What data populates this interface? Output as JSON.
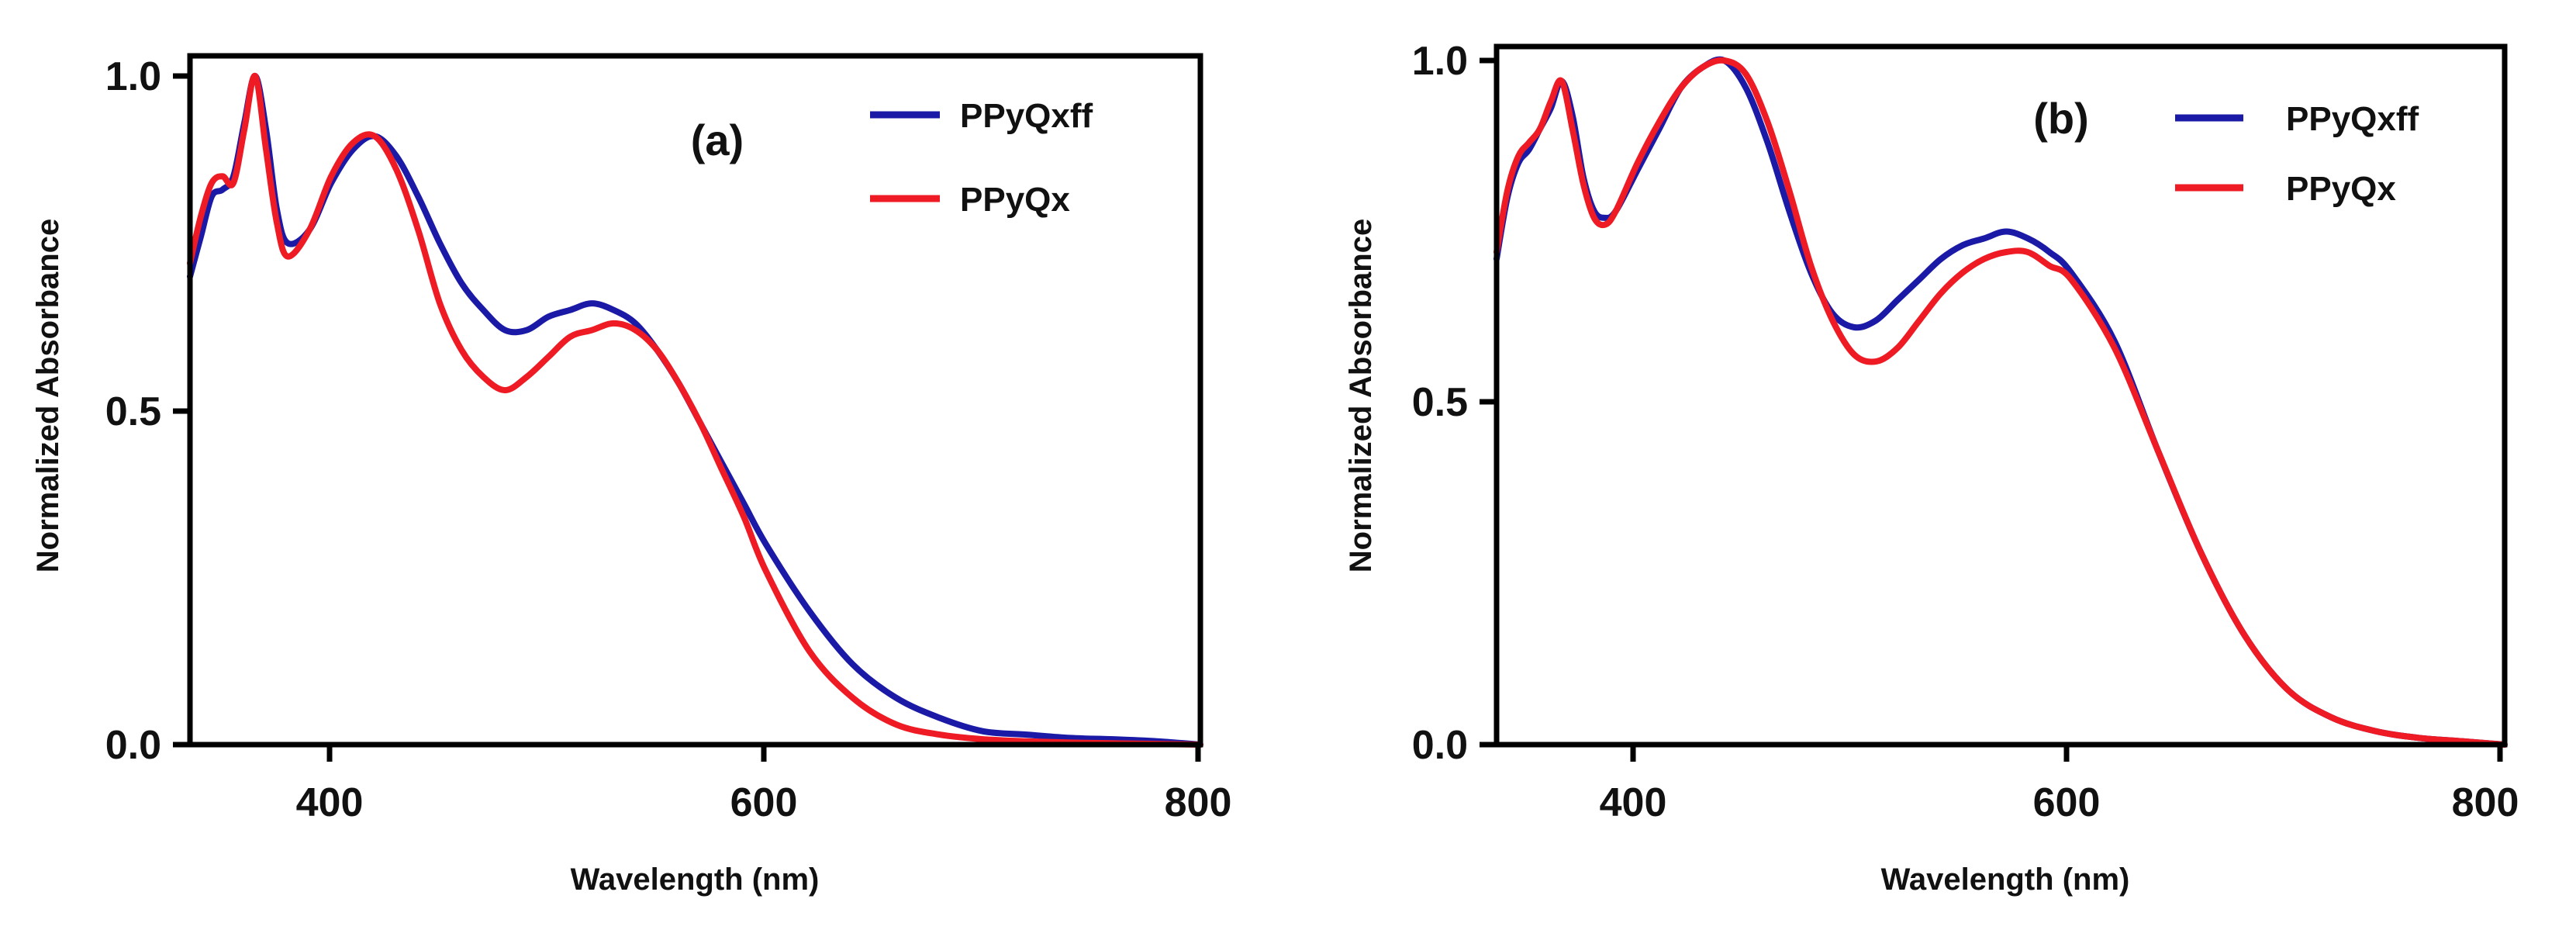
{
  "chart_data": [
    {
      "type": "line",
      "panel_label": "(a)",
      "xlabel": "Wavelength (nm)",
      "ylabel": "Normalized Absorbance",
      "xlim": [
        335,
        800
      ],
      "ylim": [
        0,
        1.0
      ],
      "xticks": [
        400,
        600,
        800
      ],
      "xtick_labels": [
        "400",
        "600",
        "800"
      ],
      "yticks": [
        0.0,
        0.5,
        1.0
      ],
      "ytick_labels": [
        "0.0",
        "0.5",
        "1.0"
      ],
      "legend_position": "top-right",
      "series": [
        {
          "name": "PPyQxff",
          "color": "#1a1aa6",
          "x": [
            335,
            340,
            345,
            350,
            355,
            360,
            365,
            370,
            375,
            380,
            390,
            400,
            410,
            420,
            430,
            440,
            450,
            460,
            470,
            480,
            490,
            500,
            510,
            520,
            530,
            540,
            550,
            560,
            570,
            580,
            590,
            600,
            620,
            640,
            660,
            680,
            700,
            720,
            740,
            760,
            780,
            800
          ],
          "y": [
            0.7,
            0.76,
            0.82,
            0.83,
            0.85,
            0.93,
            1.0,
            0.92,
            0.8,
            0.75,
            0.77,
            0.84,
            0.89,
            0.91,
            0.88,
            0.82,
            0.75,
            0.69,
            0.65,
            0.62,
            0.62,
            0.64,
            0.65,
            0.66,
            0.65,
            0.63,
            0.59,
            0.54,
            0.48,
            0.42,
            0.36,
            0.3,
            0.2,
            0.12,
            0.07,
            0.04,
            0.02,
            0.015,
            0.01,
            0.008,
            0.005,
            0.0
          ]
        },
        {
          "name": "PPyQx",
          "color": "#ee1b24",
          "x": [
            335,
            340,
            345,
            350,
            355,
            360,
            365,
            370,
            375,
            380,
            390,
            400,
            410,
            420,
            430,
            440,
            450,
            460,
            470,
            480,
            490,
            500,
            510,
            520,
            530,
            540,
            550,
            560,
            570,
            580,
            590,
            600,
            620,
            640,
            660,
            680,
            700,
            720,
            740,
            760,
            780,
            800
          ],
          "y": [
            0.72,
            0.79,
            0.84,
            0.85,
            0.84,
            0.92,
            1.0,
            0.89,
            0.78,
            0.73,
            0.77,
            0.85,
            0.9,
            0.91,
            0.86,
            0.77,
            0.66,
            0.59,
            0.55,
            0.53,
            0.55,
            0.58,
            0.61,
            0.62,
            0.63,
            0.62,
            0.59,
            0.54,
            0.48,
            0.41,
            0.34,
            0.26,
            0.14,
            0.07,
            0.03,
            0.015,
            0.008,
            0.005,
            0.003,
            0.002,
            0.001,
            0.0
          ]
        }
      ]
    },
    {
      "type": "line",
      "panel_label": "(b)",
      "xlabel": "Wavelength (nm)",
      "ylabel": "Normalized Absorbance",
      "xlim": [
        335,
        800
      ],
      "ylim": [
        0,
        1.0
      ],
      "xticks": [
        400,
        600,
        800
      ],
      "xtick_labels": [
        "400",
        "600",
        "800"
      ],
      "yticks": [
        0.0,
        0.5,
        1.0
      ],
      "ytick_labels": [
        "0.0",
        "0.5",
        "1.0"
      ],
      "legend_position": "top-right",
      "series": [
        {
          "name": "PPyQxff",
          "color": "#1a1aa6",
          "x": [
            335,
            340,
            345,
            350,
            355,
            360,
            365,
            370,
            375,
            380,
            385,
            390,
            400,
            410,
            420,
            430,
            440,
            450,
            460,
            470,
            480,
            490,
            500,
            510,
            520,
            530,
            540,
            550,
            560,
            570,
            580,
            590,
            600,
            620,
            640,
            660,
            680,
            700,
            720,
            740,
            760,
            780,
            800
          ],
          "y": [
            0.71,
            0.8,
            0.85,
            0.87,
            0.9,
            0.93,
            0.97,
            0.92,
            0.83,
            0.78,
            0.77,
            0.78,
            0.84,
            0.9,
            0.96,
            0.99,
            1.0,
            0.96,
            0.88,
            0.78,
            0.69,
            0.63,
            0.61,
            0.62,
            0.65,
            0.68,
            0.71,
            0.73,
            0.74,
            0.75,
            0.74,
            0.72,
            0.69,
            0.59,
            0.43,
            0.28,
            0.16,
            0.08,
            0.04,
            0.02,
            0.01,
            0.005,
            0.0
          ]
        },
        {
          "name": "PPyQx",
          "color": "#ee1b24",
          "x": [
            335,
            340,
            345,
            350,
            355,
            360,
            365,
            370,
            375,
            380,
            385,
            390,
            400,
            410,
            420,
            430,
            440,
            450,
            460,
            470,
            480,
            490,
            500,
            510,
            520,
            530,
            540,
            550,
            560,
            570,
            580,
            590,
            600,
            620,
            640,
            660,
            680,
            700,
            720,
            740,
            760,
            780,
            800
          ],
          "y": [
            0.72,
            0.81,
            0.86,
            0.88,
            0.9,
            0.94,
            0.97,
            0.9,
            0.82,
            0.77,
            0.76,
            0.78,
            0.85,
            0.91,
            0.96,
            0.99,
            1.0,
            0.98,
            0.91,
            0.81,
            0.7,
            0.62,
            0.57,
            0.56,
            0.58,
            0.62,
            0.66,
            0.69,
            0.71,
            0.72,
            0.72,
            0.7,
            0.68,
            0.58,
            0.43,
            0.28,
            0.16,
            0.08,
            0.04,
            0.02,
            0.01,
            0.005,
            0.0
          ]
        }
      ]
    }
  ]
}
